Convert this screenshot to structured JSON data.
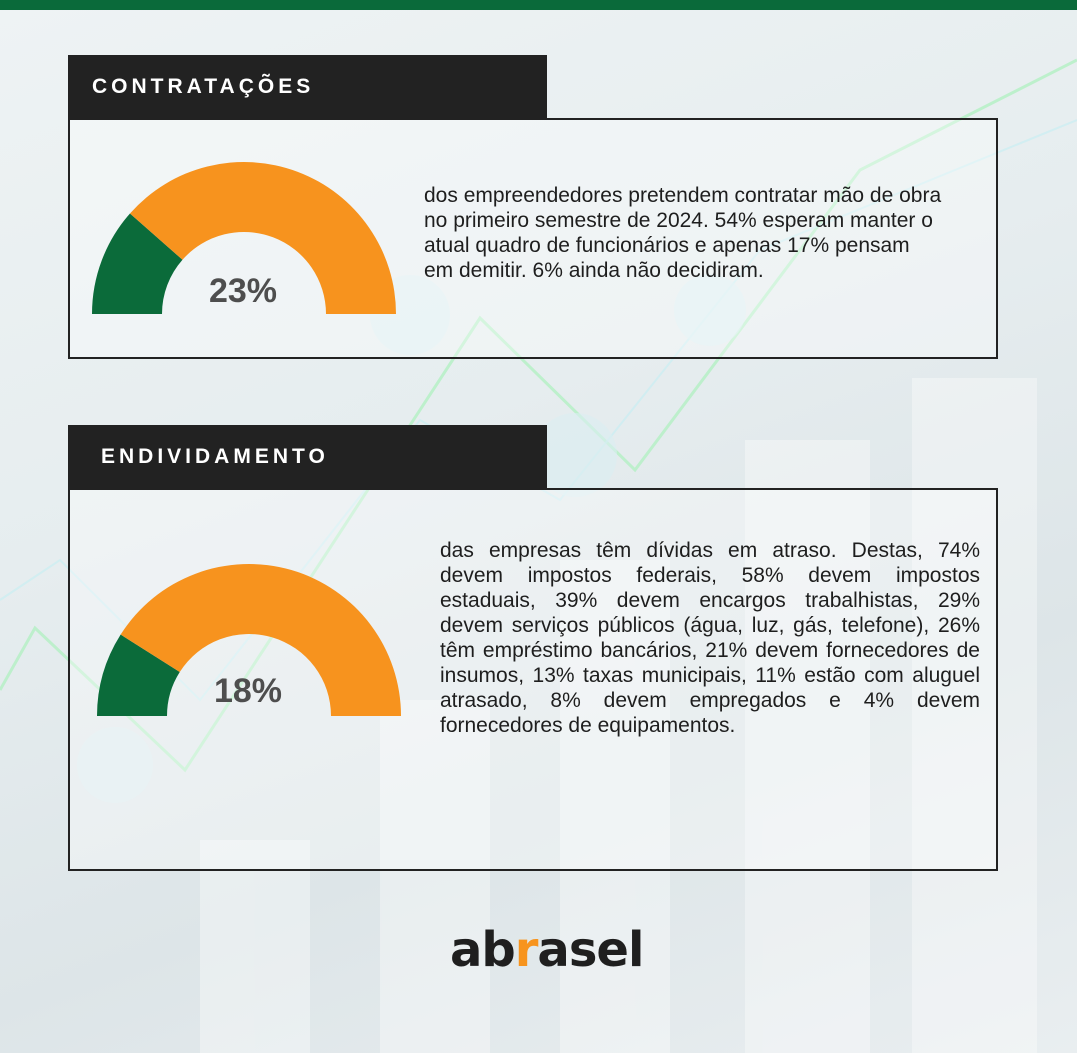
{
  "colors": {
    "brand_green": "#0a6a3a",
    "gauge_green": "#0b6b3a",
    "gauge_orange": "#f7931e",
    "header_dark": "#222222"
  },
  "sections": [
    {
      "title": "CONTRATAÇÕES",
      "gauge_value": "23%",
      "gauge_fraction": 0.23,
      "description": "dos empreendedores pretendem contratar mão de obra no primeiro semestre de 2024. 54% esperam manter o atual quadro de funcionários e apenas 17% pensam em demitir. 6% ainda não decidiram."
    },
    {
      "title": "ENDIVIDAMENTO",
      "gauge_value": "18%",
      "gauge_fraction": 0.18,
      "description": "das empresas têm dívidas em atraso. Destas, 74% devem impostos federais, 58% devem impostos estaduais, 39% devem encargos trabalhistas, 29% devem serviços públicos (água, luz, gás, telefone), 26% têm empréstimo bancários, 21% devem fornecedores de insumos, 13% taxas municipais, 11% estão com aluguel atrasado, 8% devem empregados e 4% devem fornecedores de equipamentos."
    }
  ],
  "logo": {
    "part1": "ab",
    "part2": "r",
    "part3": "asel"
  }
}
